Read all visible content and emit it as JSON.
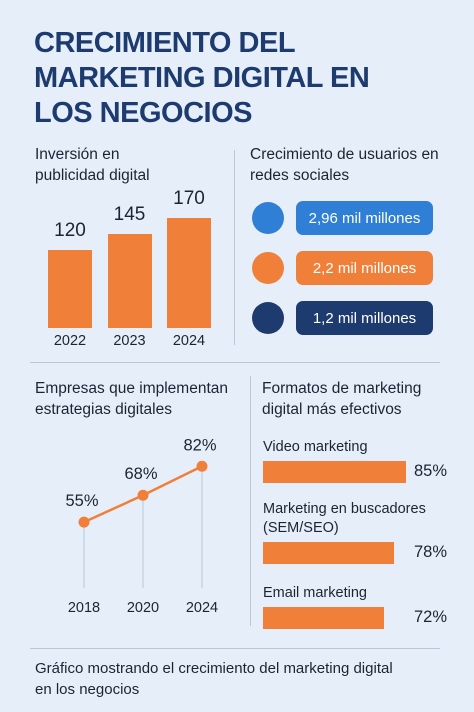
{
  "title": "CRECIMIENTO DEL MARKETING DIGITAL EN LOS NEGOCIOS",
  "chart_data": [
    {
      "type": "bar",
      "title": "Inversión en publicidad digital",
      "categories": [
        "2022",
        "2023",
        "2024"
      ],
      "values": [
        120,
        145,
        170
      ],
      "color": "#f07f3a"
    },
    {
      "type": "line",
      "title": "Empresas que implementan estrategias digitales",
      "categories": [
        "2018",
        "2020",
        "2024"
      ],
      "values": [
        55,
        68,
        82
      ],
      "value_labels": [
        "55%",
        "68%",
        "82%"
      ],
      "color": "#f07f3a"
    },
    {
      "type": "hbar",
      "title": "Formatos de marketing digital más efectivos",
      "categories": [
        "Video marketing",
        "Marketing en buscadores (SEM/SEO)",
        "Email marketing"
      ],
      "values": [
        85,
        78,
        72
      ],
      "value_labels": [
        "85%",
        "78%",
        "72%"
      ],
      "color": "#f07f3a"
    }
  ],
  "social": {
    "title": "Crecimiento de usuarios en redes sociales",
    "items": [
      "2,96 mil millones",
      "2,2 mil millones",
      "1,2 mil millones"
    ]
  },
  "caption": "Gráfico mostrando el crecimiento del marketing digital en los negocios"
}
